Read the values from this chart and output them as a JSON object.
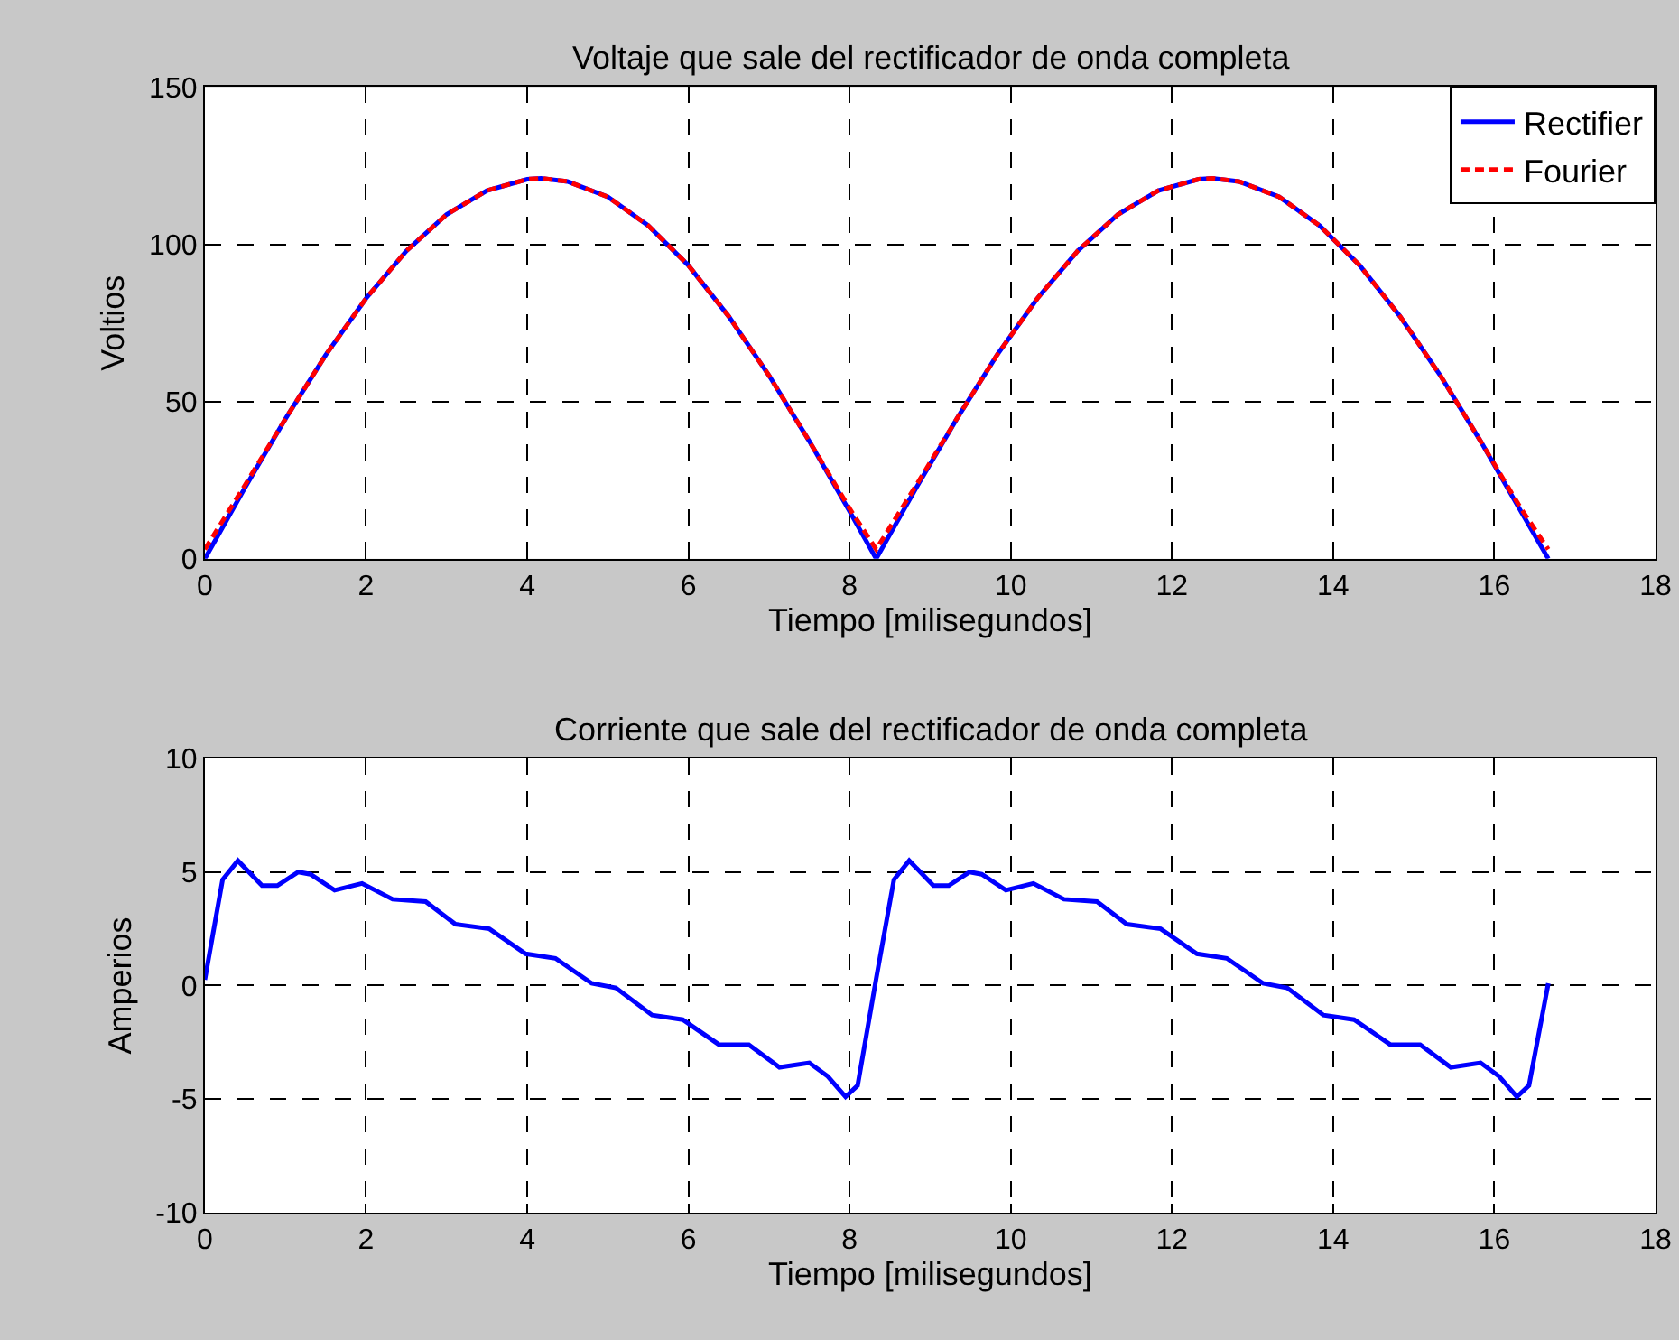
{
  "chart_data": [
    {
      "type": "line",
      "title": "Voltaje que sale del rectificador de onda completa",
      "xlabel": "Tiempo [milisegundos]",
      "ylabel": "Voltios",
      "x": [
        0,
        0.5,
        1,
        1.5,
        2,
        2.5,
        3,
        3.5,
        4,
        4.17,
        4.5,
        5,
        5.5,
        6,
        6.5,
        7,
        7.5,
        8,
        8.33,
        8.83,
        9.33,
        9.83,
        10.33,
        10.83,
        11.33,
        11.83,
        12.33,
        12.5,
        12.83,
        13.33,
        13.83,
        14.33,
        14.83,
        15.33,
        15.83,
        16.33,
        16.67
      ],
      "series": [
        {
          "name": "Rectifier",
          "color": "#0000ff",
          "line_style": "solid",
          "values": [
            0,
            22.7,
            44.5,
            64.8,
            82.8,
            97.9,
            109.5,
            117.1,
            120.7,
            121,
            120.0,
            115.1,
            106.0,
            93.3,
            77.1,
            58.3,
            37.4,
            15.1,
            0,
            22.7,
            44.5,
            64.8,
            82.8,
            97.9,
            109.5,
            117.1,
            120.7,
            121,
            120.0,
            115.1,
            106.0,
            93.3,
            77.1,
            58.3,
            37.4,
            15.1,
            0
          ]
        },
        {
          "name": "Fourier",
          "color": "#ff0000",
          "line_style": "dashed",
          "values": [
            3,
            23.5,
            44.5,
            64.8,
            82.8,
            97.9,
            109.5,
            117.1,
            120.7,
            121,
            120.0,
            115.1,
            106.0,
            93.3,
            77.1,
            58.3,
            37.4,
            16,
            3,
            23.5,
            44.5,
            64.8,
            82.8,
            97.9,
            109.5,
            117.1,
            120.7,
            121,
            120.0,
            115.1,
            106.0,
            93.3,
            77.1,
            58.3,
            37.4,
            16,
            3
          ]
        }
      ],
      "xlim": [
        0,
        18
      ],
      "xticks": [
        0,
        2,
        4,
        6,
        8,
        10,
        12,
        14,
        16,
        18
      ],
      "ylim": [
        0,
        150
      ],
      "yticks": [
        0,
        50,
        100,
        150
      ],
      "grid": true,
      "legend": "top right"
    },
    {
      "type": "line",
      "title": "Corriente que sale del rectificador de onda completa",
      "xlabel": "Tiempo [milisegundos]",
      "ylabel": "Amperios",
      "x": [
        0,
        0.22,
        0.41,
        0.71,
        0.9,
        1.16,
        1.31,
        1.61,
        1.95,
        2.33,
        2.74,
        3.11,
        3.53,
        3.98,
        4.35,
        4.8,
        5.1,
        5.55,
        5.93,
        6.38,
        6.75,
        7.13,
        7.5,
        7.73,
        7.95,
        8.1,
        8.33,
        8.55,
        8.74,
        9.04,
        9.23,
        9.49,
        9.64,
        9.94,
        10.28,
        10.66,
        11.07,
        11.44,
        11.86,
        12.31,
        12.68,
        13.13,
        13.43,
        13.88,
        14.26,
        14.71,
        15.08,
        15.46,
        15.83,
        16.06,
        16.28,
        16.43,
        16.67
      ],
      "series": [
        {
          "color": "#0000ff",
          "line_style": "solid",
          "values": [
            0.26,
            4.66,
            5.5,
            4.4,
            4.4,
            5.0,
            4.9,
            4.2,
            4.5,
            3.8,
            3.7,
            2.7,
            2.5,
            1.4,
            1.2,
            0.1,
            -0.1,
            -1.3,
            -1.5,
            -2.6,
            -2.6,
            -3.6,
            -3.4,
            -4.0,
            -4.9,
            -4.4,
            0.3,
            4.66,
            5.5,
            4.4,
            4.4,
            5.0,
            4.9,
            4.2,
            4.5,
            3.8,
            3.7,
            2.7,
            2.5,
            1.4,
            1.2,
            0.1,
            -0.1,
            -1.3,
            -1.5,
            -2.6,
            -2.6,
            -3.6,
            -3.4,
            -4.0,
            -4.9,
            -4.4,
            0.1
          ]
        }
      ],
      "xlim": [
        0,
        18
      ],
      "xticks": [
        0,
        2,
        4,
        6,
        8,
        10,
        12,
        14,
        16,
        18
      ],
      "ylim": [
        -10,
        10
      ],
      "yticks": [
        -10,
        -5,
        0,
        5,
        10
      ],
      "grid": true
    }
  ]
}
